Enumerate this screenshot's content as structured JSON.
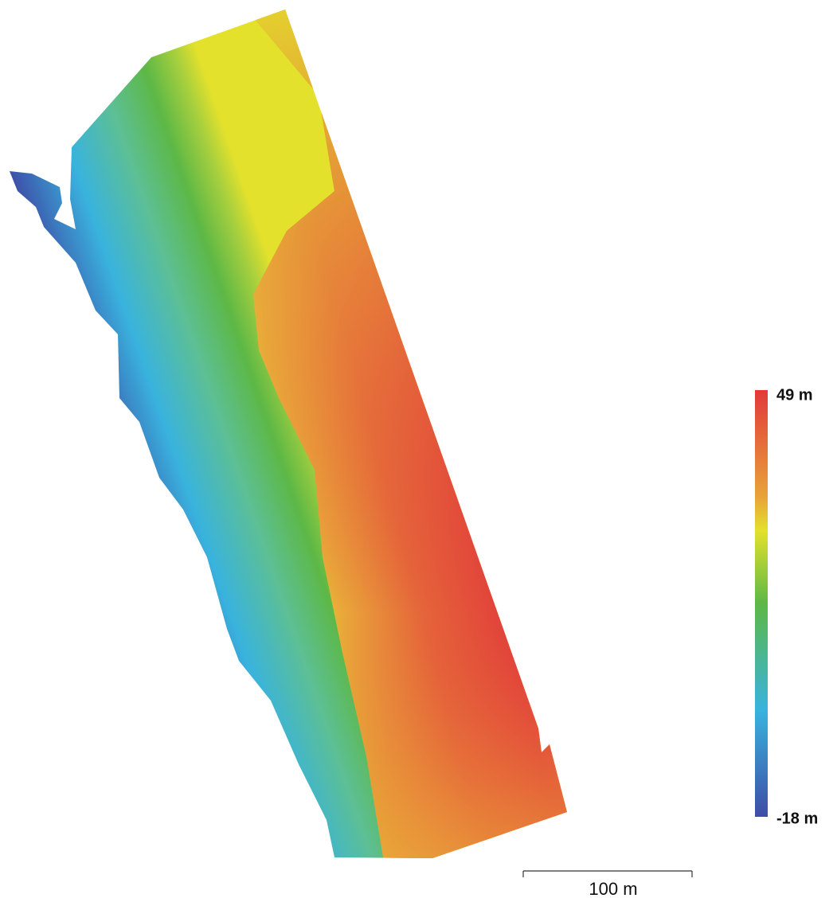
{
  "legend": {
    "max_label": "49 m",
    "min_label": "-18 m"
  },
  "scale_bar": {
    "label": "100 m"
  }
}
